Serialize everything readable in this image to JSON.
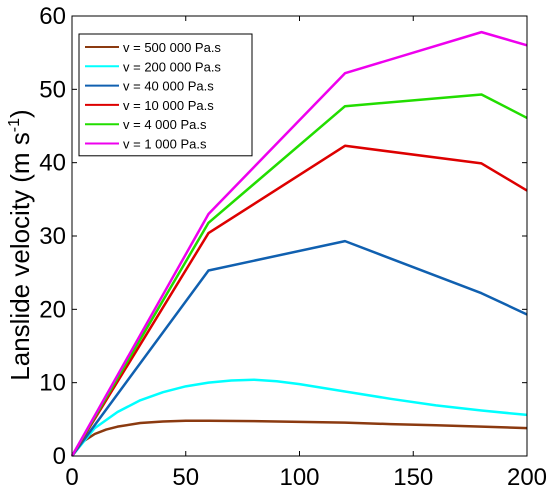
{
  "chart_data": {
    "type": "line",
    "xlabel": "",
    "ylabel": "Lanslide velocity (m s",
    "ylabel_sup": "-1",
    "ylabel_close": ")",
    "xlim": [
      0,
      200
    ],
    "ylim": [
      0,
      60
    ],
    "xticks": [
      0,
      50,
      100,
      150,
      200
    ],
    "yticks": [
      0,
      10,
      20,
      30,
      40,
      50,
      60
    ],
    "grid": false,
    "legend_position": "top-left",
    "series": [
      {
        "name": "v = 500 000 Pa.s",
        "color": "#8B3A10",
        "width": 2.5,
        "x": [
          0,
          5,
          10,
          15,
          20,
          30,
          40,
          50,
          60,
          80,
          100,
          120,
          140,
          160,
          180,
          200
        ],
        "y": [
          0,
          2.0,
          3.0,
          3.6,
          4.0,
          4.5,
          4.7,
          4.8,
          4.8,
          4.75,
          4.65,
          4.55,
          4.35,
          4.2,
          4.0,
          3.8
        ]
      },
      {
        "name": "v = 200 000 Pa.s",
        "color": "#00FFFF",
        "width": 2.5,
        "x": [
          0,
          10,
          20,
          30,
          40,
          50,
          60,
          70,
          80,
          90,
          100,
          120,
          140,
          160,
          180,
          200
        ],
        "y": [
          0,
          3.8,
          6.0,
          7.6,
          8.7,
          9.5,
          10.0,
          10.3,
          10.4,
          10.2,
          9.8,
          8.8,
          7.8,
          6.9,
          6.2,
          5.6
        ]
      },
      {
        "name": "v = 40 000 Pa.s",
        "color": "#1060B0",
        "width": 2.5,
        "x": [
          0,
          60,
          120,
          180,
          200
        ],
        "y": [
          0,
          25.3,
          29.3,
          22.2,
          19.3
        ]
      },
      {
        "name": "v = 10 000 Pa.s",
        "color": "#DD0000",
        "width": 2.5,
        "x": [
          0,
          60,
          120,
          180,
          200
        ],
        "y": [
          0,
          30.4,
          42.3,
          39.9,
          36.2
        ]
      },
      {
        "name": "v = 4 000 Pa.s",
        "color": "#22DD00",
        "width": 2.5,
        "x": [
          0,
          60,
          120,
          180,
          200
        ],
        "y": [
          0,
          31.8,
          47.7,
          49.3,
          46.1
        ]
      },
      {
        "name": "v = 1 000 Pa.s",
        "color": "#EE00EE",
        "width": 2.5,
        "x": [
          0,
          60,
          120,
          180,
          200
        ],
        "y": [
          0,
          33.0,
          52.2,
          57.8,
          56.0
        ]
      }
    ]
  }
}
